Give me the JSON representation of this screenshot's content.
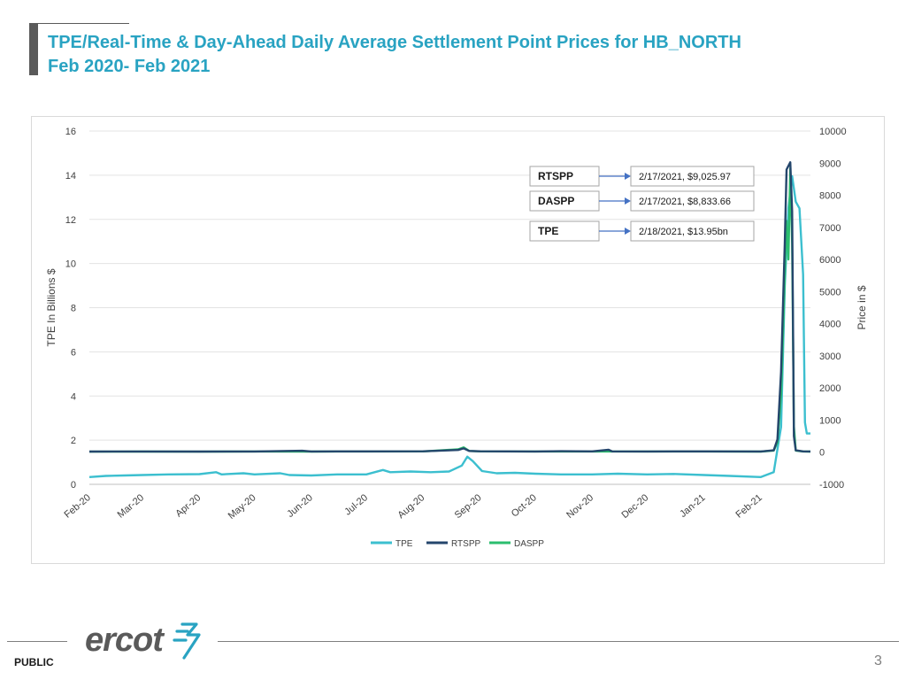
{
  "slide": {
    "title_line1": "TPE/Real-Time & Day-Ahead Daily Average Settlement Point Prices for HB_NORTH",
    "title_line2": "Feb 2020- Feb 2021",
    "footer_label": "PUBLIC",
    "page_number": "3",
    "logo_text": "ercot",
    "brand_color": "#29a3c2"
  },
  "chart_data": {
    "type": "line",
    "x_labels": [
      "Feb-20",
      "Mar-20",
      "Apr-20",
      "May-20",
      "Jun-20",
      "Jul-20",
      "Aug-20",
      "Sep-20",
      "Oct-20",
      "Nov-20",
      "Dec-20",
      "Jan-21",
      "Feb-21"
    ],
    "x_domain": [
      "2020-02-01",
      "2021-02-28"
    ],
    "y_left": {
      "label": "TPE In Billions $",
      "range": [
        0,
        16
      ],
      "ticks": [
        0,
        2,
        4,
        6,
        8,
        10,
        12,
        14,
        16
      ]
    },
    "y_right": {
      "label": "Price in $",
      "range": [
        -1000,
        10000
      ],
      "ticks": [
        -1000,
        0,
        1000,
        2000,
        3000,
        4000,
        5000,
        6000,
        7000,
        8000,
        9000,
        10000
      ]
    },
    "grid": true,
    "legend_position": "bottom",
    "series": [
      {
        "name": "TPE",
        "axis": "left",
        "color": "#3cbfcf",
        "points": [
          [
            "2020-02-01",
            0.33
          ],
          [
            "2020-02-10",
            0.38
          ],
          [
            "2020-02-20",
            0.4
          ],
          [
            "2020-03-01",
            0.42
          ],
          [
            "2020-03-15",
            0.45
          ],
          [
            "2020-04-01",
            0.46
          ],
          [
            "2020-04-10",
            0.55
          ],
          [
            "2020-04-13",
            0.45
          ],
          [
            "2020-04-25",
            0.5
          ],
          [
            "2020-05-01",
            0.45
          ],
          [
            "2020-05-15",
            0.5
          ],
          [
            "2020-05-20",
            0.42
          ],
          [
            "2020-06-01",
            0.4
          ],
          [
            "2020-06-15",
            0.45
          ],
          [
            "2020-07-01",
            0.45
          ],
          [
            "2020-07-10",
            0.65
          ],
          [
            "2020-07-14",
            0.55
          ],
          [
            "2020-07-25",
            0.58
          ],
          [
            "2020-08-05",
            0.55
          ],
          [
            "2020-08-15",
            0.58
          ],
          [
            "2020-08-22",
            0.85
          ],
          [
            "2020-08-25",
            1.25
          ],
          [
            "2020-08-28",
            1.05
          ],
          [
            "2020-09-02",
            0.6
          ],
          [
            "2020-09-10",
            0.5
          ],
          [
            "2020-09-20",
            0.52
          ],
          [
            "2020-10-01",
            0.48
          ],
          [
            "2020-10-15",
            0.45
          ],
          [
            "2020-11-01",
            0.45
          ],
          [
            "2020-11-15",
            0.48
          ],
          [
            "2020-12-01",
            0.45
          ],
          [
            "2020-12-15",
            0.47
          ],
          [
            "2021-01-01",
            0.42
          ],
          [
            "2021-01-15",
            0.38
          ],
          [
            "2021-02-01",
            0.33
          ],
          [
            "2021-02-08",
            0.55
          ],
          [
            "2021-02-12",
            2.6
          ],
          [
            "2021-02-14",
            9.0
          ],
          [
            "2021-02-16",
            12.5
          ],
          [
            "2021-02-18",
            13.95
          ],
          [
            "2021-02-20",
            12.8
          ],
          [
            "2021-02-22",
            12.5
          ],
          [
            "2021-02-24",
            9.5
          ],
          [
            "2021-02-25",
            2.8
          ],
          [
            "2021-02-26",
            2.3
          ],
          [
            "2021-02-28",
            2.3
          ]
        ]
      },
      {
        "name": "RTSPP",
        "axis": "right",
        "color": "#24466c",
        "points": [
          [
            "2020-02-01",
            20
          ],
          [
            "2020-03-01",
            22
          ],
          [
            "2020-04-01",
            20
          ],
          [
            "2020-05-01",
            23
          ],
          [
            "2020-05-27",
            45
          ],
          [
            "2020-06-01",
            22
          ],
          [
            "2020-07-01",
            25
          ],
          [
            "2020-08-01",
            28
          ],
          [
            "2020-08-20",
            70
          ],
          [
            "2020-08-23",
            120
          ],
          [
            "2020-08-26",
            40
          ],
          [
            "2020-09-01",
            28
          ],
          [
            "2020-10-01",
            24
          ],
          [
            "2020-10-15",
            30
          ],
          [
            "2020-11-01",
            25
          ],
          [
            "2020-11-10",
            75
          ],
          [
            "2020-11-12",
            25
          ],
          [
            "2020-12-01",
            24
          ],
          [
            "2021-01-01",
            25
          ],
          [
            "2021-02-01",
            22
          ],
          [
            "2021-02-08",
            60
          ],
          [
            "2021-02-10",
            400
          ],
          [
            "2021-02-12",
            2500
          ],
          [
            "2021-02-14",
            6500
          ],
          [
            "2021-02-15",
            8800
          ],
          [
            "2021-02-17",
            9025.97
          ],
          [
            "2021-02-18",
            7500
          ],
          [
            "2021-02-19",
            500
          ],
          [
            "2021-02-20",
            60
          ],
          [
            "2021-02-24",
            25
          ],
          [
            "2021-02-28",
            22
          ]
        ]
      },
      {
        "name": "DASPP",
        "axis": "right",
        "color": "#2bbd6e",
        "points": [
          [
            "2020-02-01",
            18
          ],
          [
            "2020-03-01",
            20
          ],
          [
            "2020-04-01",
            18
          ],
          [
            "2020-05-01",
            22
          ],
          [
            "2020-06-01",
            21
          ],
          [
            "2020-07-01",
            23
          ],
          [
            "2020-08-01",
            26
          ],
          [
            "2020-08-20",
            90
          ],
          [
            "2020-08-23",
            150
          ],
          [
            "2020-08-26",
            40
          ],
          [
            "2020-09-01",
            26
          ],
          [
            "2020-10-01",
            22
          ],
          [
            "2020-11-01",
            24
          ],
          [
            "2020-12-01",
            22
          ],
          [
            "2021-01-01",
            24
          ],
          [
            "2021-02-01",
            20
          ],
          [
            "2021-02-08",
            50
          ],
          [
            "2021-02-10",
            300
          ],
          [
            "2021-02-12",
            1800
          ],
          [
            "2021-02-14",
            5500
          ],
          [
            "2021-02-15",
            7200
          ],
          [
            "2021-02-16",
            6000
          ],
          [
            "2021-02-17",
            8833.66
          ],
          [
            "2021-02-18",
            6500
          ],
          [
            "2021-02-19",
            800
          ],
          [
            "2021-02-20",
            50
          ],
          [
            "2021-02-24",
            22
          ],
          [
            "2021-02-28",
            20
          ]
        ]
      }
    ],
    "annotations": [
      {
        "label": "RTSPP",
        "value": "2/17/2021, $9,025.97"
      },
      {
        "label": "DASPP",
        "value": "2/17/2021, $8,833.66"
      },
      {
        "label": "TPE",
        "value": "2/18/2021, $13.95bn"
      }
    ]
  }
}
